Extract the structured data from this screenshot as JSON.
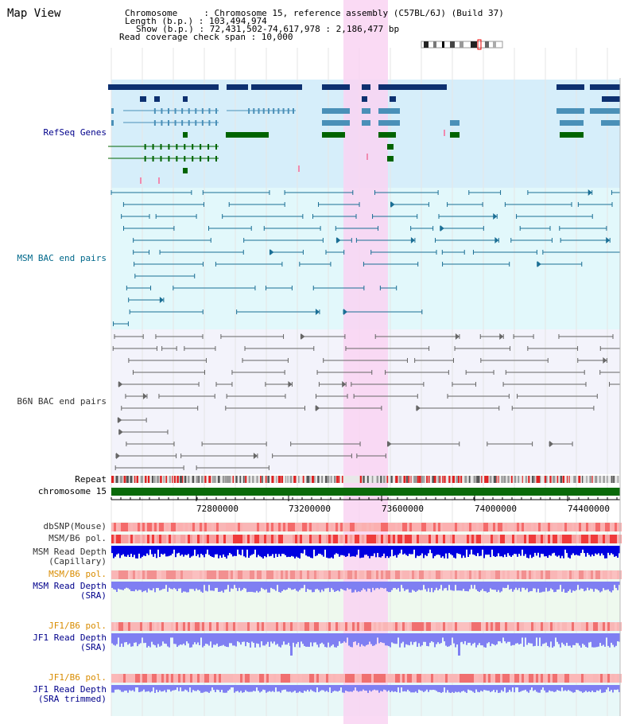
{
  "title": "Map View",
  "info": {
    "line1": "Chromosome     : Chromosome 15, reference assembly (C57BL/6J) (Build 37)",
    "line2": "Length (b.p.) : 103,494,974",
    "line3": "Show (b.p.) : 72,431,502-74,617,978 : 2,186,477 bp",
    "line4": "Read coverage check span : 10,000"
  },
  "tracks": {
    "refseq": "RefSeq Genes",
    "msm_bac": "MSM BAC end pairs",
    "b6n_bac": "B6N BAC end pairs",
    "repeat": "Repeat",
    "chromosome": "chromosome 15",
    "dbsnp": "dbSNP(Mouse)",
    "msm_b6_pol": "MSM/B6 pol.",
    "msm_read_depth_cap": "MSM Read Depth",
    "capillary": "(Capillary)",
    "msm_b6_pol2": "MSM/B6 pol.",
    "msm_read_depth_sra": "MSM Read Depth",
    "sra1": "(SRA)",
    "jf1_b6_pol": "JF1/B6 pol.",
    "jf1_read_depth": "JF1 Read Depth",
    "sra2": "(SRA)",
    "jf1_b6_pol2": "JF1/B6 pol.",
    "jf1_read_depth_trim": "JF1 Read Depth",
    "sra_trimmed": "(SRA trimmed)"
  },
  "axis_ticks": [
    "72800000",
    "73200000",
    "73600000",
    "74000000",
    "74400000"
  ],
  "colors": {
    "highlight": "#f9d4f2",
    "refseq_bg": "#d6eefa",
    "msm_bg": "#e2f8fb",
    "b6n_bg": "#f3f3fb",
    "navy": "#0d3070",
    "mid_blue": "#4a90b8",
    "green": "#006400",
    "chrom_green": "#0a6a0a",
    "depth_blue": "#0000e0",
    "light_blue": "#7f7ff2"
  }
}
